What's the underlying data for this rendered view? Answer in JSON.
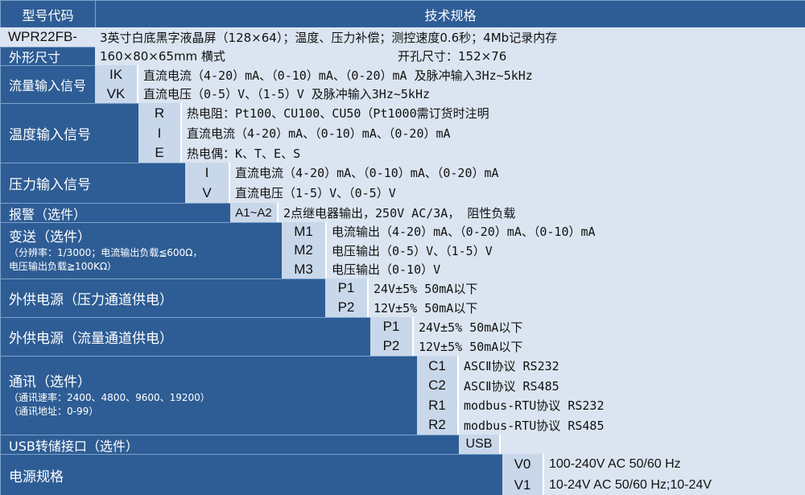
{
  "header": {
    "model_col": "型号代码",
    "spec_col": "技术规格"
  },
  "model": {
    "code": "WPR22FB-",
    "desc": "3英寸白底黑字液晶屏（128×64）；温度、压力补偿；测控速度0.6秒；4Mb记录内存"
  },
  "dimensions": {
    "label": "外形尺寸",
    "size": "160×80×65mm 横式",
    "cutout": "开孔尺寸：152×76"
  },
  "flow_input": {
    "label": "流量输入信号",
    "rows": [
      {
        "code": "IK",
        "desc": "直流电流（4-20）mA、（0-10）mA、（0-20）mA 及脉冲输入3Hz~5kHz"
      },
      {
        "code": "VK",
        "desc": "直流电压（0-5）V、（1-5）V 及脉冲输入3Hz~5kHz"
      }
    ]
  },
  "temp_input": {
    "label": "温度输入信号",
    "rows": [
      {
        "code": "R",
        "desc": "热电阻：Pt100、CU100、CU50（Pt1000需订货时注明"
      },
      {
        "code": "I",
        "desc": "直流电流（4-20）mA、（0-10）mA、（0-20）mA"
      },
      {
        "code": "E",
        "desc": "热电偶：K、T、E、S"
      }
    ]
  },
  "pressure_input": {
    "label": "压力输入信号",
    "rows": [
      {
        "code": "I",
        "desc": "直流电流（4-20）mA、（0-10）mA、（0-20）mA"
      },
      {
        "code": "V",
        "desc": "直流电压（1-5）V、（0-5）V"
      }
    ]
  },
  "alarm": {
    "label": "报警（选件）",
    "code": "A1~A2",
    "desc": "2点继电器输出，250V AC/3A， 阻性负载"
  },
  "transmit": {
    "label": "变送（选件）",
    "note1": "（分辨率：1/3000；电流输出负载≦600Ω，",
    "note2": "电压输出负载≧100KΩ）",
    "rows": [
      {
        "code": "M1",
        "desc": "电流输出（4-20）mA、（0-20）mA、（0-10）mA"
      },
      {
        "code": "M2",
        "desc": "电压输出（0-5）V、（1-5）V"
      },
      {
        "code": "M3",
        "desc": "电压输出（0-10）V"
      }
    ]
  },
  "power_pressure": {
    "label": "外供电源（压力通道供电）",
    "rows": [
      {
        "code": "P1",
        "desc": "24V±5%  50mA以下"
      },
      {
        "code": "P2",
        "desc": "12V±5%  50mA以下"
      }
    ]
  },
  "power_flow": {
    "label": "外供电源（流量通道供电）",
    "rows": [
      {
        "code": "P1",
        "desc": "24V±5%  50mA以下"
      },
      {
        "code": "P2",
        "desc": "12V±5%  50mA以下"
      }
    ]
  },
  "comm": {
    "label": "通讯（选件）",
    "note1": "（通讯速率：2400、4800、9600、19200）",
    "note2": "（通讯地址：0-99）",
    "rows": [
      {
        "code": "C1",
        "desc": "ASCⅡ协议 RS232"
      },
      {
        "code": "C2",
        "desc": "ASCⅡ协议 RS485"
      },
      {
        "code": "R1",
        "desc": "modbus-RTU协议 RS232"
      },
      {
        "code": "R2",
        "desc": "modbus-RTU协议 RS485"
      }
    ]
  },
  "usb": {
    "label": "USB转储接口（选件）",
    "code": "USB"
  },
  "power_supply": {
    "label": "电源规格",
    "rows": [
      {
        "code": "V0",
        "desc": "100-240V AC 50/60 Hz"
      },
      {
        "code": "V1",
        "desc": "10-24V AC 50/60 Hz;10-24V"
      }
    ]
  }
}
